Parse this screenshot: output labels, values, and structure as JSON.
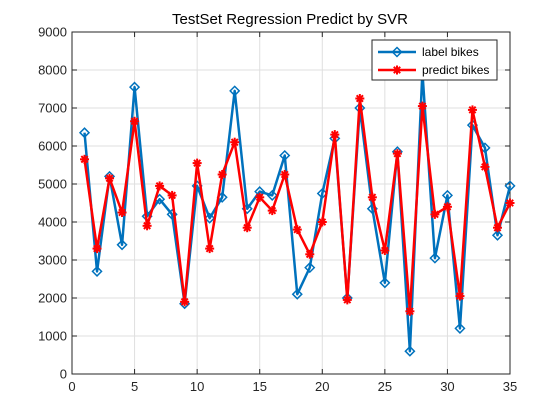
{
  "chart_data": {
    "type": "line",
    "title": "TestSet Regression Predict by SVR",
    "xlabel": "",
    "ylabel": "",
    "xlim": [
      0,
      35
    ],
    "ylim": [
      0,
      9000
    ],
    "x_ticks": [
      0,
      5,
      10,
      15,
      20,
      25,
      30,
      35
    ],
    "y_ticks": [
      0,
      1000,
      2000,
      3000,
      4000,
      5000,
      6000,
      7000,
      8000,
      9000
    ],
    "grid": true,
    "legend_position": "top-right",
    "x": [
      1,
      2,
      3,
      4,
      5,
      6,
      7,
      8,
      9,
      10,
      11,
      12,
      13,
      14,
      15,
      16,
      17,
      18,
      19,
      20,
      21,
      22,
      23,
      24,
      25,
      26,
      27,
      28,
      29,
      30,
      31,
      32,
      33,
      34,
      35
    ],
    "series": [
      {
        "name": "label bikes",
        "color": "#0072BD",
        "marker": "diamond",
        "values": [
          6350,
          2700,
          5200,
          3400,
          7550,
          4150,
          4600,
          4200,
          1850,
          4950,
          4100,
          4650,
          7450,
          4350,
          4800,
          4700,
          5750,
          2100,
          2800,
          4750,
          6200,
          2000,
          7000,
          4350,
          2400,
          5850,
          600,
          7950,
          3050,
          4700,
          1200,
          6550,
          5950,
          3650,
          4950
        ]
      },
      {
        "name": "predict bikes",
        "color": "#FF0000",
        "marker": "star",
        "values": [
          5650,
          3300,
          5150,
          4250,
          6650,
          3900,
          4950,
          4700,
          1900,
          5550,
          3300,
          5250,
          6100,
          3850,
          4650,
          4300,
          5250,
          3800,
          3150,
          4000,
          6300,
          1950,
          7250,
          4650,
          3250,
          5800,
          1650,
          7050,
          4200,
          4400,
          2050,
          6950,
          5450,
          3850,
          4500
        ]
      }
    ]
  }
}
